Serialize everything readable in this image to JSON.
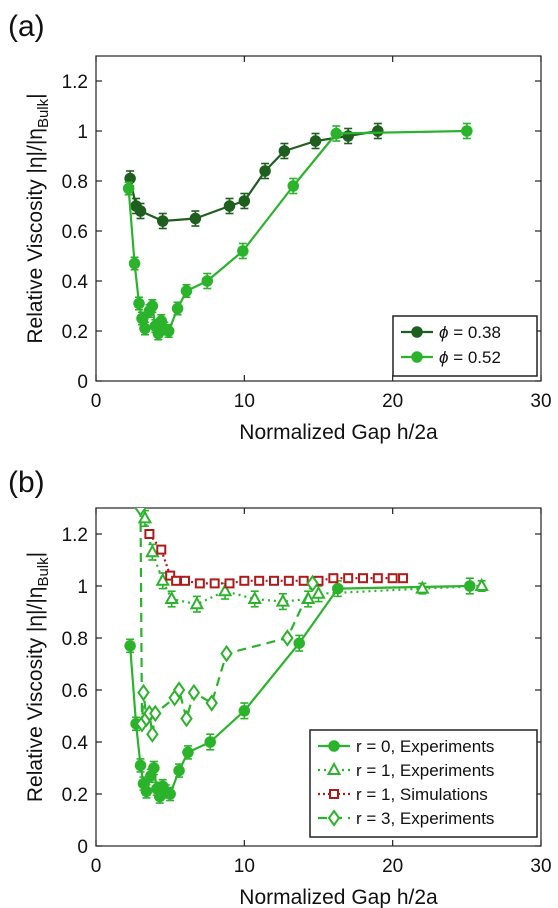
{
  "chart_data": [
    {
      "type": "line",
      "panel_label": "(a)",
      "xlabel": "Normalized Gap h/2a",
      "ylabel": "Relative Viscosity |η|/|η",
      "ylabel_sub": "Bulk",
      "ylabel_end": "|",
      "xlim": [
        0,
        30
      ],
      "ylim": [
        0,
        1.3
      ],
      "xticks": [
        0,
        10,
        20,
        30
      ],
      "xtick_labels": [
        "0",
        "10",
        "20",
        "30"
      ],
      "yticks": [
        0,
        0.2,
        0.4,
        0.6,
        0.8,
        1,
        1.2
      ],
      "ytick_labels": [
        "0",
        "0.2",
        "0.4",
        "0.6",
        "0.8",
        "1",
        "1.2"
      ],
      "grid": false,
      "legend_position": "bottom-right",
      "series": [
        {
          "legend_prefix": "ϕ",
          "legend_value": " = 0.38",
          "color": "#1e5e1e",
          "marker": "circle",
          "dash": "solid",
          "points": [
            [
              2.3,
              0.81
            ],
            [
              2.7,
              0.7
            ],
            [
              3.0,
              0.68
            ],
            [
              4.5,
              0.64
            ],
            [
              6.7,
              0.65
            ],
            [
              9.0,
              0.7
            ],
            [
              10.0,
              0.72
            ],
            [
              11.4,
              0.84
            ],
            [
              12.7,
              0.92
            ],
            [
              14.8,
              0.96
            ],
            [
              17.0,
              0.98
            ],
            [
              19.0,
              1.0
            ]
          ],
          "errors": [
            0.03,
            0.03,
            0.03,
            0.03,
            0.03,
            0.03,
            0.03,
            0.03,
            0.03,
            0.03,
            0.03,
            0.03
          ]
        },
        {
          "legend_prefix": "ϕ",
          "legend_value": " = 0.52",
          "color": "#2bb32b",
          "marker": "circle",
          "dash": "solid",
          "points": [
            [
              2.2,
              0.77
            ],
            [
              2.6,
              0.47
            ],
            [
              2.9,
              0.31
            ],
            [
              3.1,
              0.25
            ],
            [
              3.3,
              0.21
            ],
            [
              3.6,
              0.28
            ],
            [
              3.8,
              0.3
            ],
            [
              4.0,
              0.22
            ],
            [
              4.2,
              0.19
            ],
            [
              4.4,
              0.24
            ],
            [
              4.6,
              0.21
            ],
            [
              4.9,
              0.2
            ],
            [
              5.5,
              0.29
            ],
            [
              6.1,
              0.36
            ],
            [
              7.5,
              0.4
            ],
            [
              9.9,
              0.52
            ],
            [
              13.3,
              0.78
            ],
            [
              16.2,
              0.99
            ],
            [
              25.0,
              1.0
            ]
          ],
          "errors": [
            0.025,
            0.025,
            0.025,
            0.025,
            0.025,
            0.025,
            0.025,
            0.025,
            0.025,
            0.025,
            0.025,
            0.025,
            0.025,
            0.025,
            0.03,
            0.03,
            0.03,
            0.03,
            0.03
          ]
        }
      ]
    },
    {
      "type": "line",
      "panel_label": "(b)",
      "xlabel": "Normalized Gap h/2a",
      "ylabel": "Relative Viscosity |η|/|η",
      "ylabel_sub": "Bulk",
      "ylabel_end": "|",
      "xlim": [
        0,
        30
      ],
      "ylim": [
        0,
        1.3
      ],
      "xticks": [
        0,
        10,
        20,
        30
      ],
      "xtick_labels": [
        "0",
        "10",
        "20",
        "30"
      ],
      "yticks": [
        0,
        0.2,
        0.4,
        0.6,
        0.8,
        1,
        1.2
      ],
      "ytick_labels": [
        "0",
        "0.2",
        "0.4",
        "0.6",
        "0.8",
        "1",
        "1.2"
      ],
      "grid": false,
      "legend_position": "bottom-right",
      "series": [
        {
          "name": "r = 0, Experiments",
          "color": "#2bb32b",
          "marker": "circle",
          "dash": "solid",
          "points": [
            [
              2.3,
              0.77
            ],
            [
              2.7,
              0.47
            ],
            [
              3.0,
              0.31
            ],
            [
              3.2,
              0.24
            ],
            [
              3.4,
              0.21
            ],
            [
              3.7,
              0.27
            ],
            [
              3.9,
              0.3
            ],
            [
              4.1,
              0.22
            ],
            [
              4.3,
              0.19
            ],
            [
              4.5,
              0.23
            ],
            [
              4.7,
              0.21
            ],
            [
              5.0,
              0.2
            ],
            [
              5.6,
              0.29
            ],
            [
              6.2,
              0.36
            ],
            [
              7.7,
              0.4
            ],
            [
              10.0,
              0.52
            ],
            [
              13.7,
              0.78
            ],
            [
              16.3,
              0.99
            ],
            [
              25.2,
              1.0
            ]
          ],
          "errors": [
            0.025,
            0.025,
            0.025,
            0.025,
            0.025,
            0.025,
            0.025,
            0.025,
            0.025,
            0.025,
            0.025,
            0.025,
            0.025,
            0.025,
            0.03,
            0.03,
            0.03,
            0.03,
            0.03
          ]
        },
        {
          "name": "r = 1, Experiments",
          "color": "#2bb32b",
          "marker": "triangle",
          "dash": "2,4",
          "points": [
            [
              3.3,
              1.26
            ],
            [
              3.8,
              1.13
            ],
            [
              4.5,
              1.02
            ],
            [
              5.1,
              0.95
            ],
            [
              6.8,
              0.93
            ],
            [
              8.7,
              0.98
            ],
            [
              10.7,
              0.95
            ],
            [
              12.6,
              0.94
            ],
            [
              14.3,
              0.95
            ],
            [
              15.0,
              0.97
            ],
            [
              22.0,
              0.99
            ],
            [
              26.0,
              1.0
            ]
          ],
          "errors": [
            0.03,
            0.03,
            0.03,
            0.03,
            0.03,
            0.03,
            0.03,
            0.03,
            0.03,
            0.03,
            0.02,
            0.02
          ]
        },
        {
          "name": "r = 1, Simulations",
          "color": "#b01a1a",
          "marker": "square",
          "dash": "2,3",
          "points": [
            [
              3.6,
              1.2
            ],
            [
              4.4,
              1.14
            ],
            [
              5.0,
              1.04
            ],
            [
              5.4,
              1.02
            ],
            [
              6.0,
              1.02
            ],
            [
              7.0,
              1.01
            ],
            [
              8.0,
              1.01
            ],
            [
              9.0,
              1.01
            ],
            [
              10.0,
              1.02
            ],
            [
              11.0,
              1.02
            ],
            [
              12.0,
              1.02
            ],
            [
              13.0,
              1.02
            ],
            [
              14.0,
              1.02
            ],
            [
              15.0,
              1.02
            ],
            [
              16.0,
              1.03
            ],
            [
              17.0,
              1.03
            ],
            [
              18.0,
              1.03
            ],
            [
              19.0,
              1.03
            ],
            [
              20.0,
              1.03
            ],
            [
              20.7,
              1.03
            ]
          ]
        },
        {
          "name": "r = 3, Experiments",
          "color": "#2bb32b",
          "marker": "diamond",
          "dash": "9,6",
          "points": [
            [
              3.0,
              1.3
            ],
            [
              3.1,
              0.47
            ],
            [
              3.2,
              0.59
            ],
            [
              3.4,
              0.49
            ],
            [
              3.6,
              0.51
            ],
            [
              3.8,
              0.43
            ],
            [
              4.0,
              0.51
            ],
            [
              5.3,
              0.57
            ],
            [
              5.6,
              0.6
            ],
            [
              6.1,
              0.49
            ],
            [
              6.6,
              0.59
            ],
            [
              7.8,
              0.55
            ],
            [
              8.8,
              0.74
            ],
            [
              12.9,
              0.8
            ],
            [
              14.6,
              1.01
            ]
          ]
        }
      ]
    }
  ]
}
